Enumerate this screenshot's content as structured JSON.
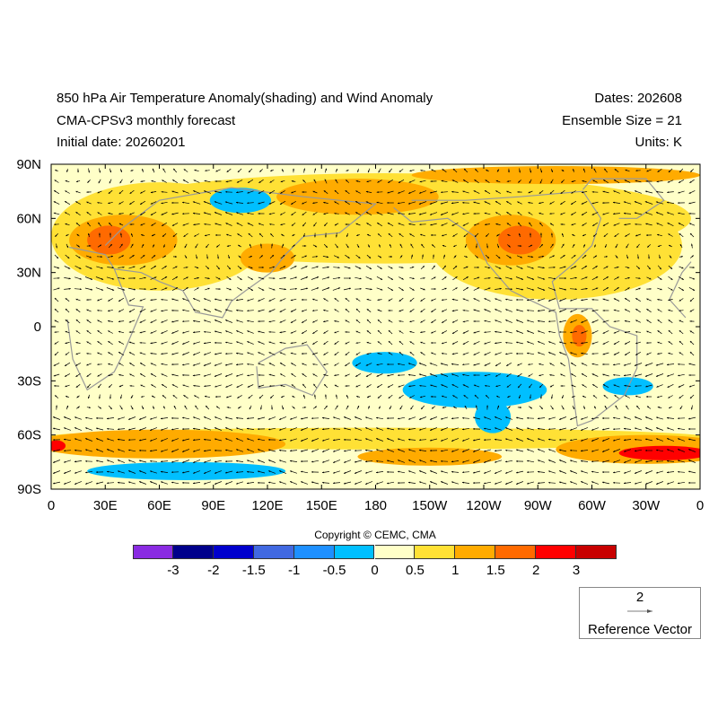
{
  "header": {
    "title": "850 hPa Air Temperature Anomaly(shading) and Wind Anomaly",
    "subtitle": "CMA-CPSv3 monthly forecast",
    "initial_date": "Initial date: 20260201",
    "dates": "Dates: 202608",
    "ensemble": "Ensemble Size = 21",
    "units": "Units: K"
  },
  "map": {
    "lon_labels": [
      "0",
      "30E",
      "60E",
      "90E",
      "120E",
      "150E",
      "180",
      "150W",
      "120W",
      "90W",
      "60W",
      "30W",
      "0"
    ],
    "lat_labels": [
      "90N",
      "60N",
      "30N",
      "0",
      "30S",
      "60S",
      "90S"
    ],
    "background_color": "#ffffc8",
    "anomaly_regions": [
      {
        "lon": 185,
        "lat": 60,
        "rx": 170,
        "ry": 25,
        "level": "y"
      },
      {
        "lon": 60,
        "lat": 50,
        "rx": 60,
        "ry": 30,
        "level": "y"
      },
      {
        "lon": 280,
        "lat": 45,
        "rx": 70,
        "ry": 30,
        "level": "y"
      },
      {
        "lon": 180,
        "lat": -62,
        "rx": 190,
        "ry": 6,
        "level": "y"
      },
      {
        "lon": 60,
        "lat": -65,
        "rx": 70,
        "ry": 8,
        "level": "o"
      },
      {
        "lon": 330,
        "lat": -68,
        "rx": 50,
        "ry": 8,
        "level": "o"
      },
      {
        "lon": 210,
        "lat": -72,
        "rx": 40,
        "ry": 5,
        "level": "o"
      },
      {
        "lon": 40,
        "lat": 48,
        "rx": 30,
        "ry": 14,
        "level": "o"
      },
      {
        "lon": 120,
        "lat": 38,
        "rx": 15,
        "ry": 8,
        "level": "o"
      },
      {
        "lon": 170,
        "lat": 72,
        "rx": 45,
        "ry": 10,
        "level": "o"
      },
      {
        "lon": 255,
        "lat": 48,
        "rx": 25,
        "ry": 14,
        "level": "o"
      },
      {
        "lon": 280,
        "lat": 84,
        "rx": 80,
        "ry": 5,
        "level": "o"
      },
      {
        "lon": 292,
        "lat": -5,
        "rx": 8,
        "ry": 12,
        "level": "o"
      },
      {
        "lon": 32,
        "lat": 48,
        "rx": 12,
        "ry": 8,
        "level": "do"
      },
      {
        "lon": 260,
        "lat": 48,
        "rx": 12,
        "ry": 8,
        "level": "do"
      },
      {
        "lon": 293,
        "lat": -5,
        "rx": 4,
        "ry": 6,
        "level": "do"
      },
      {
        "lon": 3,
        "lat": -66,
        "rx": 5,
        "ry": 3,
        "level": "r"
      },
      {
        "lon": 340,
        "lat": -70,
        "rx": 25,
        "ry": 4,
        "level": "r"
      },
      {
        "lon": 75,
        "lat": -80,
        "rx": 55,
        "ry": 5,
        "level": "b"
      },
      {
        "lon": 105,
        "lat": 70,
        "rx": 17,
        "ry": 7,
        "level": "b"
      },
      {
        "lon": 185,
        "lat": -20,
        "rx": 18,
        "ry": 6,
        "level": "b"
      },
      {
        "lon": 235,
        "lat": -35,
        "rx": 40,
        "ry": 10,
        "level": "b"
      },
      {
        "lon": 245,
        "lat": -50,
        "rx": 10,
        "ry": 9,
        "level": "b"
      },
      {
        "lon": 320,
        "lat": -33,
        "rx": 14,
        "ry": 5,
        "level": "b"
      }
    ],
    "level_colors": {
      "y": "#ffe135",
      "o": "#ffab00",
      "do": "#ff6a00",
      "r": "#ff0000",
      "b": "#00bfff"
    }
  },
  "colorbar": {
    "copyright": "Copyright © CEMC, CMA",
    "colors": [
      "#8a2be2",
      "#00008b",
      "#0000cd",
      "#4169e1",
      "#1e90ff",
      "#00bfff",
      "#ffffc8",
      "#ffe135",
      "#ffab00",
      "#ff6a00",
      "#ff0000",
      "#c80000"
    ],
    "labels": [
      "-3",
      "-2",
      "-1.5",
      "-1",
      "-0.5",
      "0",
      "0.5",
      "1",
      "1.5",
      "2",
      "3"
    ]
  },
  "reference_vector": {
    "magnitude": "2",
    "label": "Reference Vector"
  }
}
